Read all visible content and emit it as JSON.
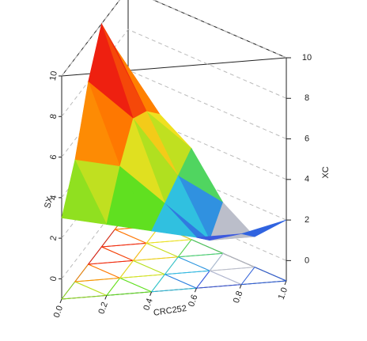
{
  "chart_data": {
    "type": "surface3d",
    "x_label": "CRC252",
    "z_label": "XC",
    "left_label": "SX",
    "xlim": [
      0,
      1
    ],
    "xticks": [
      {
        "value": 0,
        "label": "0.0"
      },
      0.2,
      0.4,
      0.6,
      0.8,
      {
        "value": 1,
        "label": "1.0"
      }
    ],
    "zlim": [
      -1,
      10
    ],
    "zticks": [
      0,
      2,
      4,
      6,
      8,
      10
    ],
    "left_ticks": [
      0,
      2,
      4,
      6,
      8,
      10
    ],
    "grid": true,
    "surface": {
      "x": [
        0,
        0.2,
        0.4,
        0.6,
        0.8,
        1
      ],
      "t": [
        0,
        0.2,
        0.4,
        0.6,
        0.8,
        1
      ],
      "z": [
        [
          3,
          5,
          8,
          10,
          8,
          6
        ],
        [
          2.5,
          4.5,
          6,
          5.5,
          4.5
        ],
        [
          2,
          2.5,
          3,
          3.5
        ],
        [
          1.5,
          0.5,
          1.5
        ],
        [
          1.5,
          0.5
        ],
        [
          2
        ]
      ]
    },
    "colorscale": [
      {
        "value": -1,
        "color": "#c8c8c8"
      },
      {
        "value": 0.8,
        "color": "#c8c8c8"
      },
      {
        "value": 1.2,
        "color": "#3050e0"
      },
      {
        "value": 2,
        "color": "#30c0e0"
      },
      {
        "value": 3,
        "color": "#60e020"
      },
      {
        "value": 4.5,
        "color": "#f0e020"
      },
      {
        "value": 6,
        "color": "#ff8000"
      },
      {
        "value": 8,
        "color": "#ee2010"
      },
      {
        "value": 10,
        "color": "#801010"
      }
    ]
  }
}
